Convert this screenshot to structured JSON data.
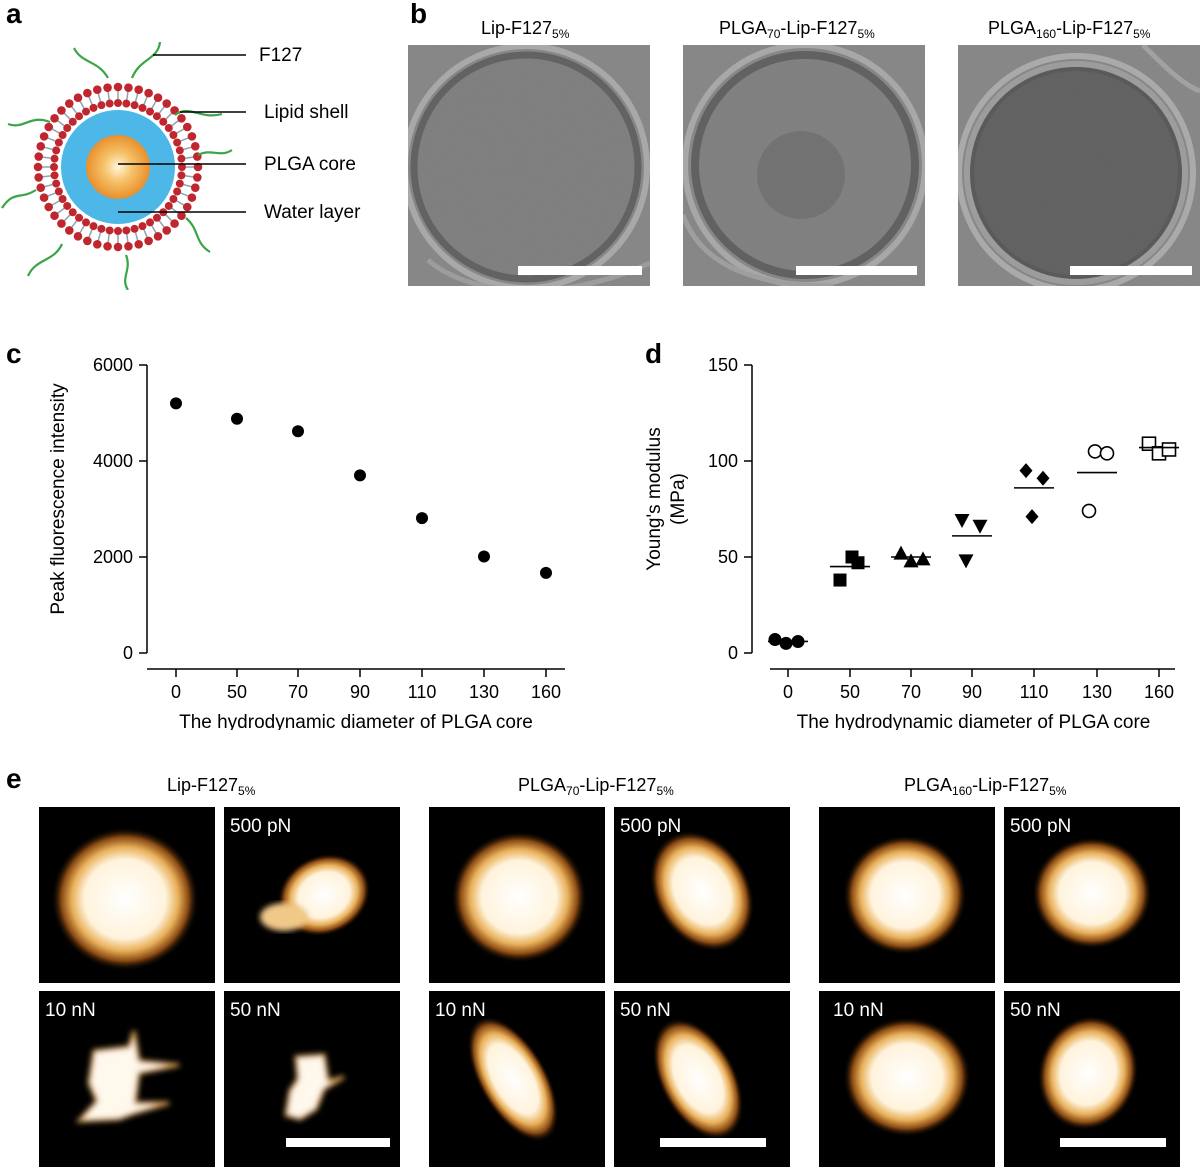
{
  "panel_labels": {
    "a": "a",
    "b": "b",
    "c": "c",
    "d": "d",
    "e": "e"
  },
  "schematic": {
    "labels": {
      "f127": "F127",
      "lipid_shell": "Lipid shell",
      "plga_core": "PLGA core",
      "water_layer": "Water layer"
    },
    "colors": {
      "lipid_head": "#c0262d",
      "water": "#4db8e8",
      "core": "#f2a341",
      "polymer": "#3aa547"
    }
  },
  "tem": {
    "titles": [
      {
        "main": "Lip-F127",
        "sub": "5%"
      },
      {
        "pre": "PLGA",
        "pre_sub": "70",
        "main": "-Lip-F127",
        "sub": "5%"
      },
      {
        "pre": "PLGA",
        "pre_sub": "160",
        "main": "-Lip-F127",
        "sub": "5%"
      }
    ]
  },
  "chart_data": [
    {
      "type": "scatter",
      "panel": "c",
      "xlabel": "The hydrodynamic diameter of PLGA core",
      "ylabel": "Peak fluorescence intensity",
      "categories": [
        "0",
        "50",
        "70",
        "90",
        "110",
        "130",
        "160"
      ],
      "yticks": [
        0,
        2000,
        4000,
        6000
      ],
      "ylim": [
        0,
        6000
      ],
      "series": [
        {
          "values": [
            5200,
            4880,
            4620,
            3700,
            2810,
            2010,
            1670
          ]
        }
      ]
    },
    {
      "type": "scatter",
      "panel": "d",
      "xlabel": "The hydrodynamic diameter of PLGA core",
      "ylabel_line1": "Young's modulus",
      "ylabel_line2": "(MPa)",
      "categories": [
        "0",
        "50",
        "70",
        "90",
        "110",
        "130",
        "160"
      ],
      "yticks": [
        0,
        50,
        100,
        150
      ],
      "ylim": [
        0,
        150
      ],
      "groups": [
        {
          "marker": "filled-circle",
          "points": [
            7,
            5,
            6
          ],
          "mean": 6
        },
        {
          "marker": "filled-square",
          "points": [
            38,
            50,
            47
          ],
          "mean": 45
        },
        {
          "marker": "filled-triangle-up",
          "points": [
            52,
            48,
            49
          ],
          "mean": 50
        },
        {
          "marker": "filled-triangle-down",
          "points": [
            48,
            69,
            66
          ],
          "mean": 61
        },
        {
          "marker": "filled-diamond",
          "points": [
            95,
            71,
            91
          ],
          "mean": 86
        },
        {
          "marker": "open-circle",
          "points": [
            74,
            105,
            104
          ],
          "mean": 94
        },
        {
          "marker": "open-square",
          "points": [
            109,
            104,
            106
          ],
          "mean": 107
        }
      ]
    }
  ],
  "afm": {
    "titles": [
      {
        "main": "Lip-F127",
        "sub": "5%"
      },
      {
        "pre": "PLGA",
        "pre_sub": "70",
        "main": "-Lip-F127",
        "sub": "5%"
      },
      {
        "pre": "PLGA",
        "pre_sub": "160",
        "main": "-Lip-F127",
        "sub": "5%"
      }
    ],
    "force_labels": {
      "f500": "500 pN",
      "f10": "10 nN",
      "f50": "50 nN"
    }
  }
}
